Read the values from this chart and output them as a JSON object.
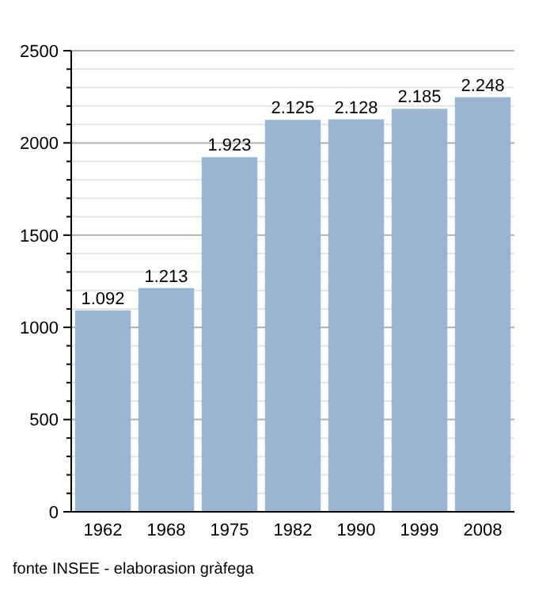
{
  "chart_data": {
    "type": "bar",
    "categories": [
      "1962",
      "1968",
      "1975",
      "1982",
      "1990",
      "1999",
      "2008"
    ],
    "values": [
      1092,
      1213,
      1923,
      2125,
      2128,
      2185,
      2248
    ],
    "value_labels": [
      "1.092",
      "1.213",
      "1.923",
      "2.125",
      "2.128",
      "2.185",
      "2.248"
    ],
    "color": "#9ab5d0",
    "ylim": [
      0,
      2500
    ],
    "yticks": [
      0,
      {
        "value": 100,
        "label": null
      },
      {
        "value": 200,
        "label": null
      },
      {
        "value": 300,
        "label": null
      },
      {
        "value": 400,
        "label": null
      },
      500,
      {
        "value": 600,
        "label": null
      },
      {
        "value": 700,
        "label": null
      },
      {
        "value": 800,
        "label": null
      },
      {
        "value": 900,
        "label": null
      },
      1000,
      {
        "value": 1100,
        "label": null
      },
      {
        "value": 1200,
        "label": null
      },
      {
        "value": 1300,
        "label": null
      },
      {
        "value": 1400,
        "label": null
      },
      1500,
      {
        "value": 1600,
        "label": null
      },
      {
        "value": 1700,
        "label": null
      },
      {
        "value": 1800,
        "label": null
      },
      {
        "value": 1900,
        "label": null
      },
      2000,
      {
        "value": 2100,
        "label": null
      },
      {
        "value": 2200,
        "label": null
      },
      {
        "value": 2300,
        "label": null
      },
      {
        "value": 2400,
        "label": null
      },
      2500
    ],
    "grid": true,
    "annotations": [
      "fonte INSEE - elaborasion gràfega"
    ]
  }
}
